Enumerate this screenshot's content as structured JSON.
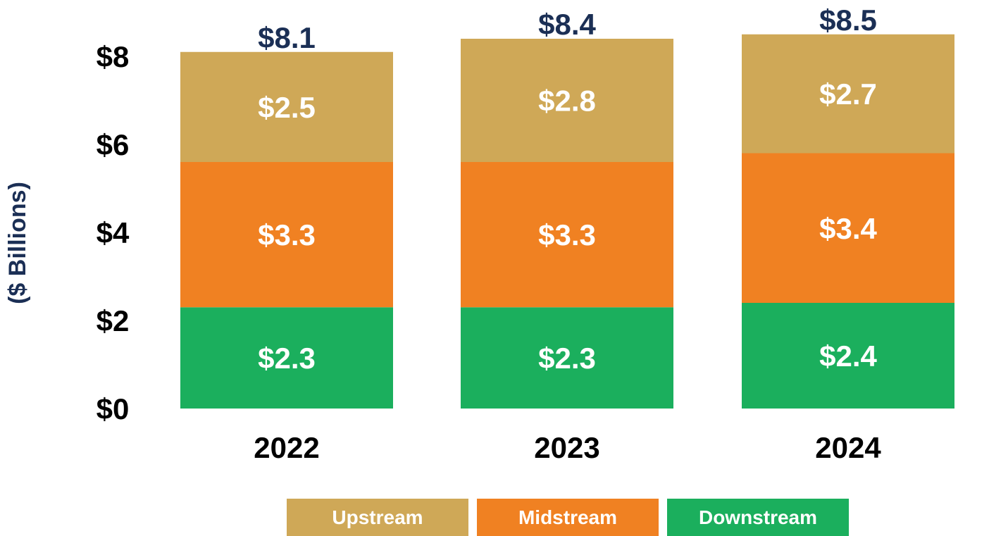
{
  "chart_data": {
    "type": "bar",
    "stacked": true,
    "ylabel": "($ Billions)",
    "ylim": [
      0,
      8.5
    ],
    "yticks": [
      {
        "value": 0,
        "label": "$0"
      },
      {
        "value": 2,
        "label": "$2"
      },
      {
        "value": 4,
        "label": "$4"
      },
      {
        "value": 6,
        "label": "$6"
      },
      {
        "value": 8,
        "label": "$8"
      }
    ],
    "categories": [
      "2022",
      "2023",
      "2024"
    ],
    "totals": [
      8.1,
      8.4,
      8.5
    ],
    "total_labels": [
      "$8.1",
      "$8.4",
      "$8.5"
    ],
    "series": [
      {
        "name": "Downstream",
        "color": "#1BAF5D",
        "values": [
          2.3,
          2.3,
          2.4
        ],
        "labels": [
          "$2.3",
          "$2.3",
          "$2.4"
        ]
      },
      {
        "name": "Midstream",
        "color": "#F08122",
        "values": [
          3.3,
          3.3,
          3.4
        ],
        "labels": [
          "$3.3",
          "$3.3",
          "$3.4"
        ]
      },
      {
        "name": "Upstream",
        "color": "#CFA857",
        "values": [
          2.5,
          2.8,
          2.7
        ],
        "labels": [
          "$2.5",
          "$2.8",
          "$2.7"
        ]
      }
    ],
    "legend": {
      "placement": "bottom",
      "items": [
        {
          "name": "Upstream",
          "color": "#CFA857"
        },
        {
          "name": "Midstream",
          "color": "#F08122"
        },
        {
          "name": "Downstream",
          "color": "#1BAF5D"
        }
      ]
    },
    "colors": {
      "total_label": "#1B2F55",
      "axis_text": "#000000",
      "ylabel": "#1B2F55",
      "segment_label": "#FFFFFF"
    }
  }
}
